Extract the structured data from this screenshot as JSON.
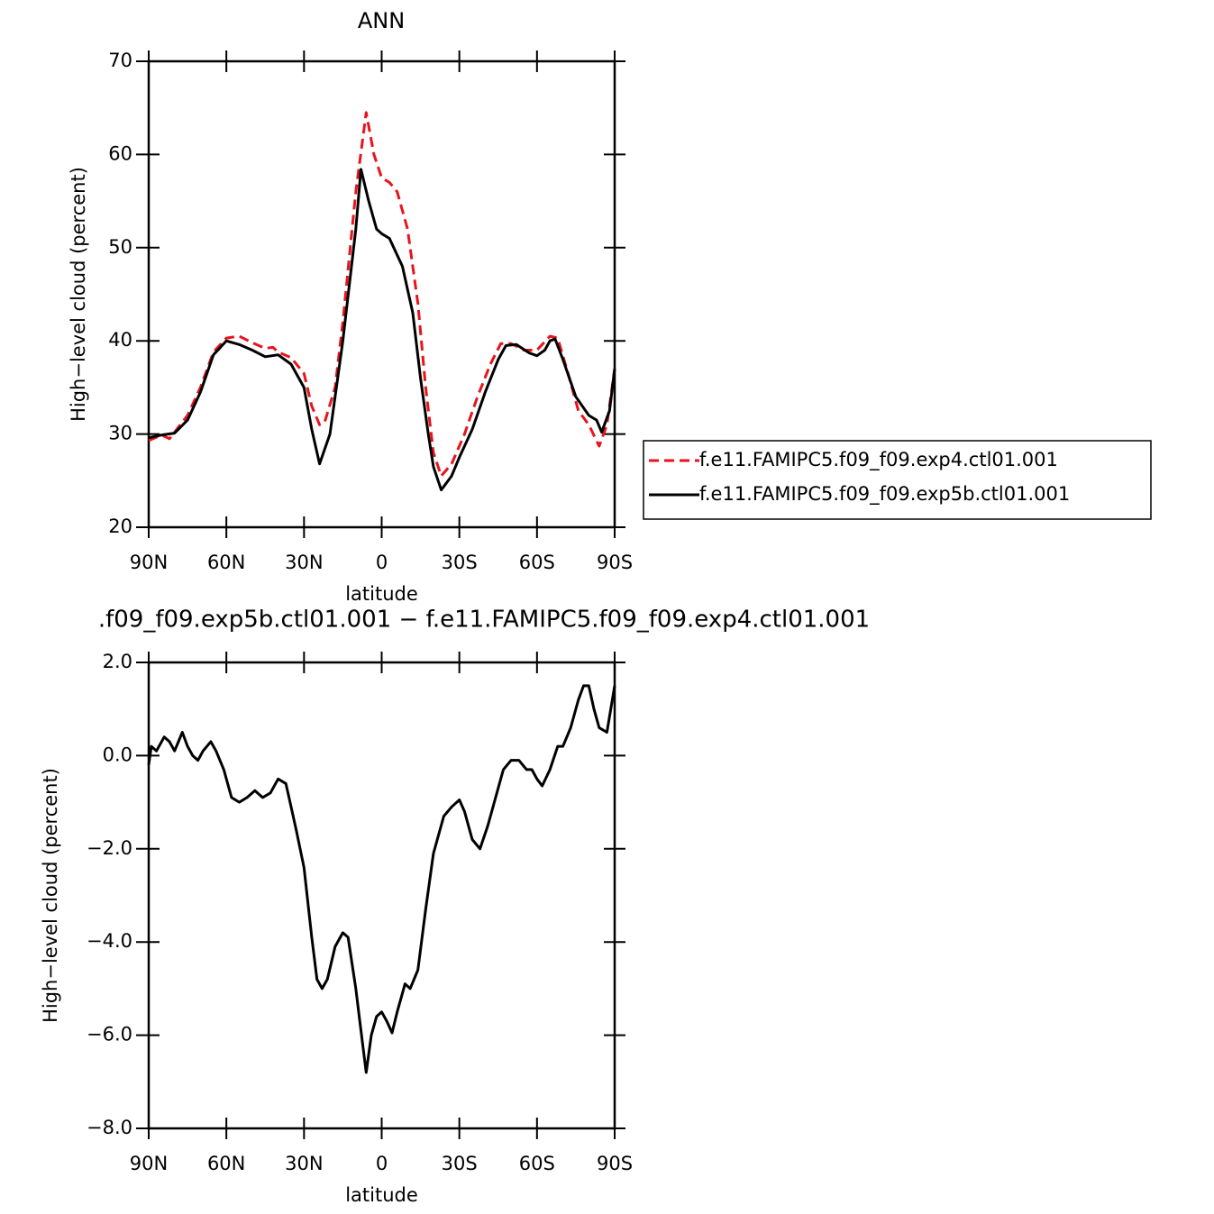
{
  "chart_data": [
    {
      "type": "line",
      "title": "ANN",
      "xlabel": "latitude",
      "ylabel": "High−level cloud (percent)",
      "xlim": [
        90,
        -90
      ],
      "ylim": [
        20,
        70
      ],
      "xticks": [
        {
          "value": 90,
          "label": "90N"
        },
        {
          "value": 60,
          "label": "60N"
        },
        {
          "value": 30,
          "label": "30N"
        },
        0,
        {
          "value": -30,
          "label": "30S"
        },
        {
          "value": -60,
          "label": "60S"
        },
        {
          "value": -90,
          "label": "90S"
        }
      ],
      "yticks": [
        20,
        30,
        40,
        50,
        60,
        70
      ],
      "legend": "right",
      "series": [
        {
          "name": "f.e11.FAMIPC5.f09_f09.exp4.ctl01.001",
          "color": "#e8141c",
          "line_style": "dashed",
          "x": [
            90,
            85,
            82,
            80,
            75,
            70,
            65,
            60,
            55,
            50,
            45,
            42,
            40,
            35,
            30,
            27,
            24,
            22,
            18,
            15,
            10,
            6,
            3,
            0,
            -3,
            -6,
            -10,
            -14,
            -17,
            -20,
            -23,
            -27,
            -32,
            -37,
            -42,
            -46,
            -50,
            -55,
            -60,
            -65,
            -68,
            -72,
            -76,
            -80,
            -84,
            -87,
            -90
          ],
          "values": [
            29.3,
            29.9,
            29.5,
            30.2,
            32,
            35,
            38.8,
            40.3,
            40.5,
            39.8,
            39.2,
            39.3,
            38.8,
            38.2,
            36.5,
            33,
            31,
            31.3,
            35,
            42,
            56,
            64.5,
            60,
            57.5,
            57,
            56,
            52,
            44,
            35,
            28,
            25.5,
            26.8,
            30,
            34,
            37.5,
            39.7,
            39.7,
            39,
            39,
            40.5,
            40.3,
            36.5,
            32.5,
            31,
            28.7,
            31,
            37
          ]
        },
        {
          "name": "f.e11.FAMIPC5.f09_f09.exp5b.ctl01.001",
          "color": "#000000",
          "line_style": "solid",
          "x": [
            90,
            85,
            80,
            75,
            70,
            65,
            60,
            55,
            50,
            45,
            40,
            35,
            30,
            27,
            24,
            20,
            15,
            10,
            8,
            5,
            2,
            0,
            -3,
            -8,
            -12,
            -15,
            -18,
            -20,
            -23,
            -27,
            -30,
            -35,
            -40,
            -45,
            -48,
            -52,
            -57,
            -60,
            -63,
            -65,
            -67,
            -70,
            -75,
            -80,
            -83,
            -85,
            -88,
            -90
          ],
          "values": [
            29.6,
            29.9,
            30.1,
            31.5,
            34.5,
            38.5,
            40,
            39.6,
            39,
            38.3,
            38.5,
            37.5,
            35,
            30.5,
            26.8,
            30,
            40,
            52,
            58.4,
            55,
            52,
            51.5,
            51,
            48,
            43,
            36,
            30,
            26.5,
            24,
            25.5,
            27.5,
            30.5,
            34.5,
            38,
            39.5,
            39.6,
            38.7,
            38.4,
            39,
            40,
            40.2,
            38,
            34,
            32,
            31.5,
            30.2,
            32.5,
            37
          ]
        }
      ]
    },
    {
      "type": "line",
      "title": ".f09_f09.exp5b.ctl01.001 − f.e11.FAMIPC5.f09_f09.exp4.ctl01.001",
      "xlabel": "latitude",
      "ylabel": "High−level cloud (percent)",
      "xlim": [
        90,
        -90
      ],
      "ylim": [
        -8,
        2
      ],
      "xticks": [
        {
          "value": 90,
          "label": "90N"
        },
        {
          "value": 60,
          "label": "60N"
        },
        {
          "value": 30,
          "label": "30N"
        },
        0,
        {
          "value": -30,
          "label": "30S"
        },
        {
          "value": -60,
          "label": "60S"
        },
        {
          "value": -90,
          "label": "90S"
        }
      ],
      "yticks": [
        {
          "value": -8,
          "label": "−8.0"
        },
        {
          "value": -6,
          "label": "−6.0"
        },
        {
          "value": -4,
          "label": "−4.0"
        },
        {
          "value": -2,
          "label": "−2.0"
        },
        {
          "value": 0,
          "label": "0.0"
        },
        {
          "value": 2,
          "label": "2.0"
        }
      ],
      "series": [
        {
          "color": "#000000",
          "line_style": "solid",
          "x": [
            90,
            89,
            87,
            84,
            82,
            80,
            77,
            75,
            73,
            71,
            69,
            66,
            64,
            61,
            58,
            55,
            52,
            49,
            46,
            43,
            40,
            37,
            35,
            33,
            30,
            27,
            25,
            23,
            21,
            18,
            15,
            13,
            10,
            8,
            6,
            4,
            2,
            0,
            -2,
            -4,
            -6,
            -9,
            -11,
            -14,
            -17,
            -20,
            -24,
            -27,
            -30,
            -32,
            -35,
            -38,
            -41,
            -44,
            -47,
            -50,
            -53,
            -56,
            -58,
            -60,
            -62,
            -65,
            -68,
            -70,
            -73,
            -76,
            -78,
            -80,
            -82,
            -84,
            -87,
            -90
          ],
          "values": [
            -0.2,
            0.2,
            0.1,
            0.4,
            0.3,
            0.1,
            0.5,
            0.2,
            0,
            -0.1,
            0.1,
            0.3,
            0.1,
            -0.3,
            -0.9,
            -1,
            -0.9,
            -0.75,
            -0.9,
            -0.8,
            -0.5,
            -0.6,
            -1.1,
            -1.6,
            -2.4,
            -3.9,
            -4.8,
            -5,
            -4.8,
            -4.1,
            -3.8,
            -3.9,
            -5,
            -5.9,
            -6.8,
            -6,
            -5.6,
            -5.5,
            -5.7,
            -5.95,
            -5.5,
            -4.9,
            -5,
            -4.6,
            -3.3,
            -2.1,
            -1.3,
            -1.1,
            -0.95,
            -1.2,
            -1.8,
            -2,
            -1.5,
            -0.9,
            -0.3,
            -0.1,
            -0.1,
            -0.3,
            -0.3,
            -0.5,
            -0.65,
            -0.3,
            0.2,
            0.2,
            0.6,
            1.2,
            1.5,
            1.5,
            1,
            0.6,
            0.5,
            1.5
          ]
        }
      ]
    }
  ]
}
